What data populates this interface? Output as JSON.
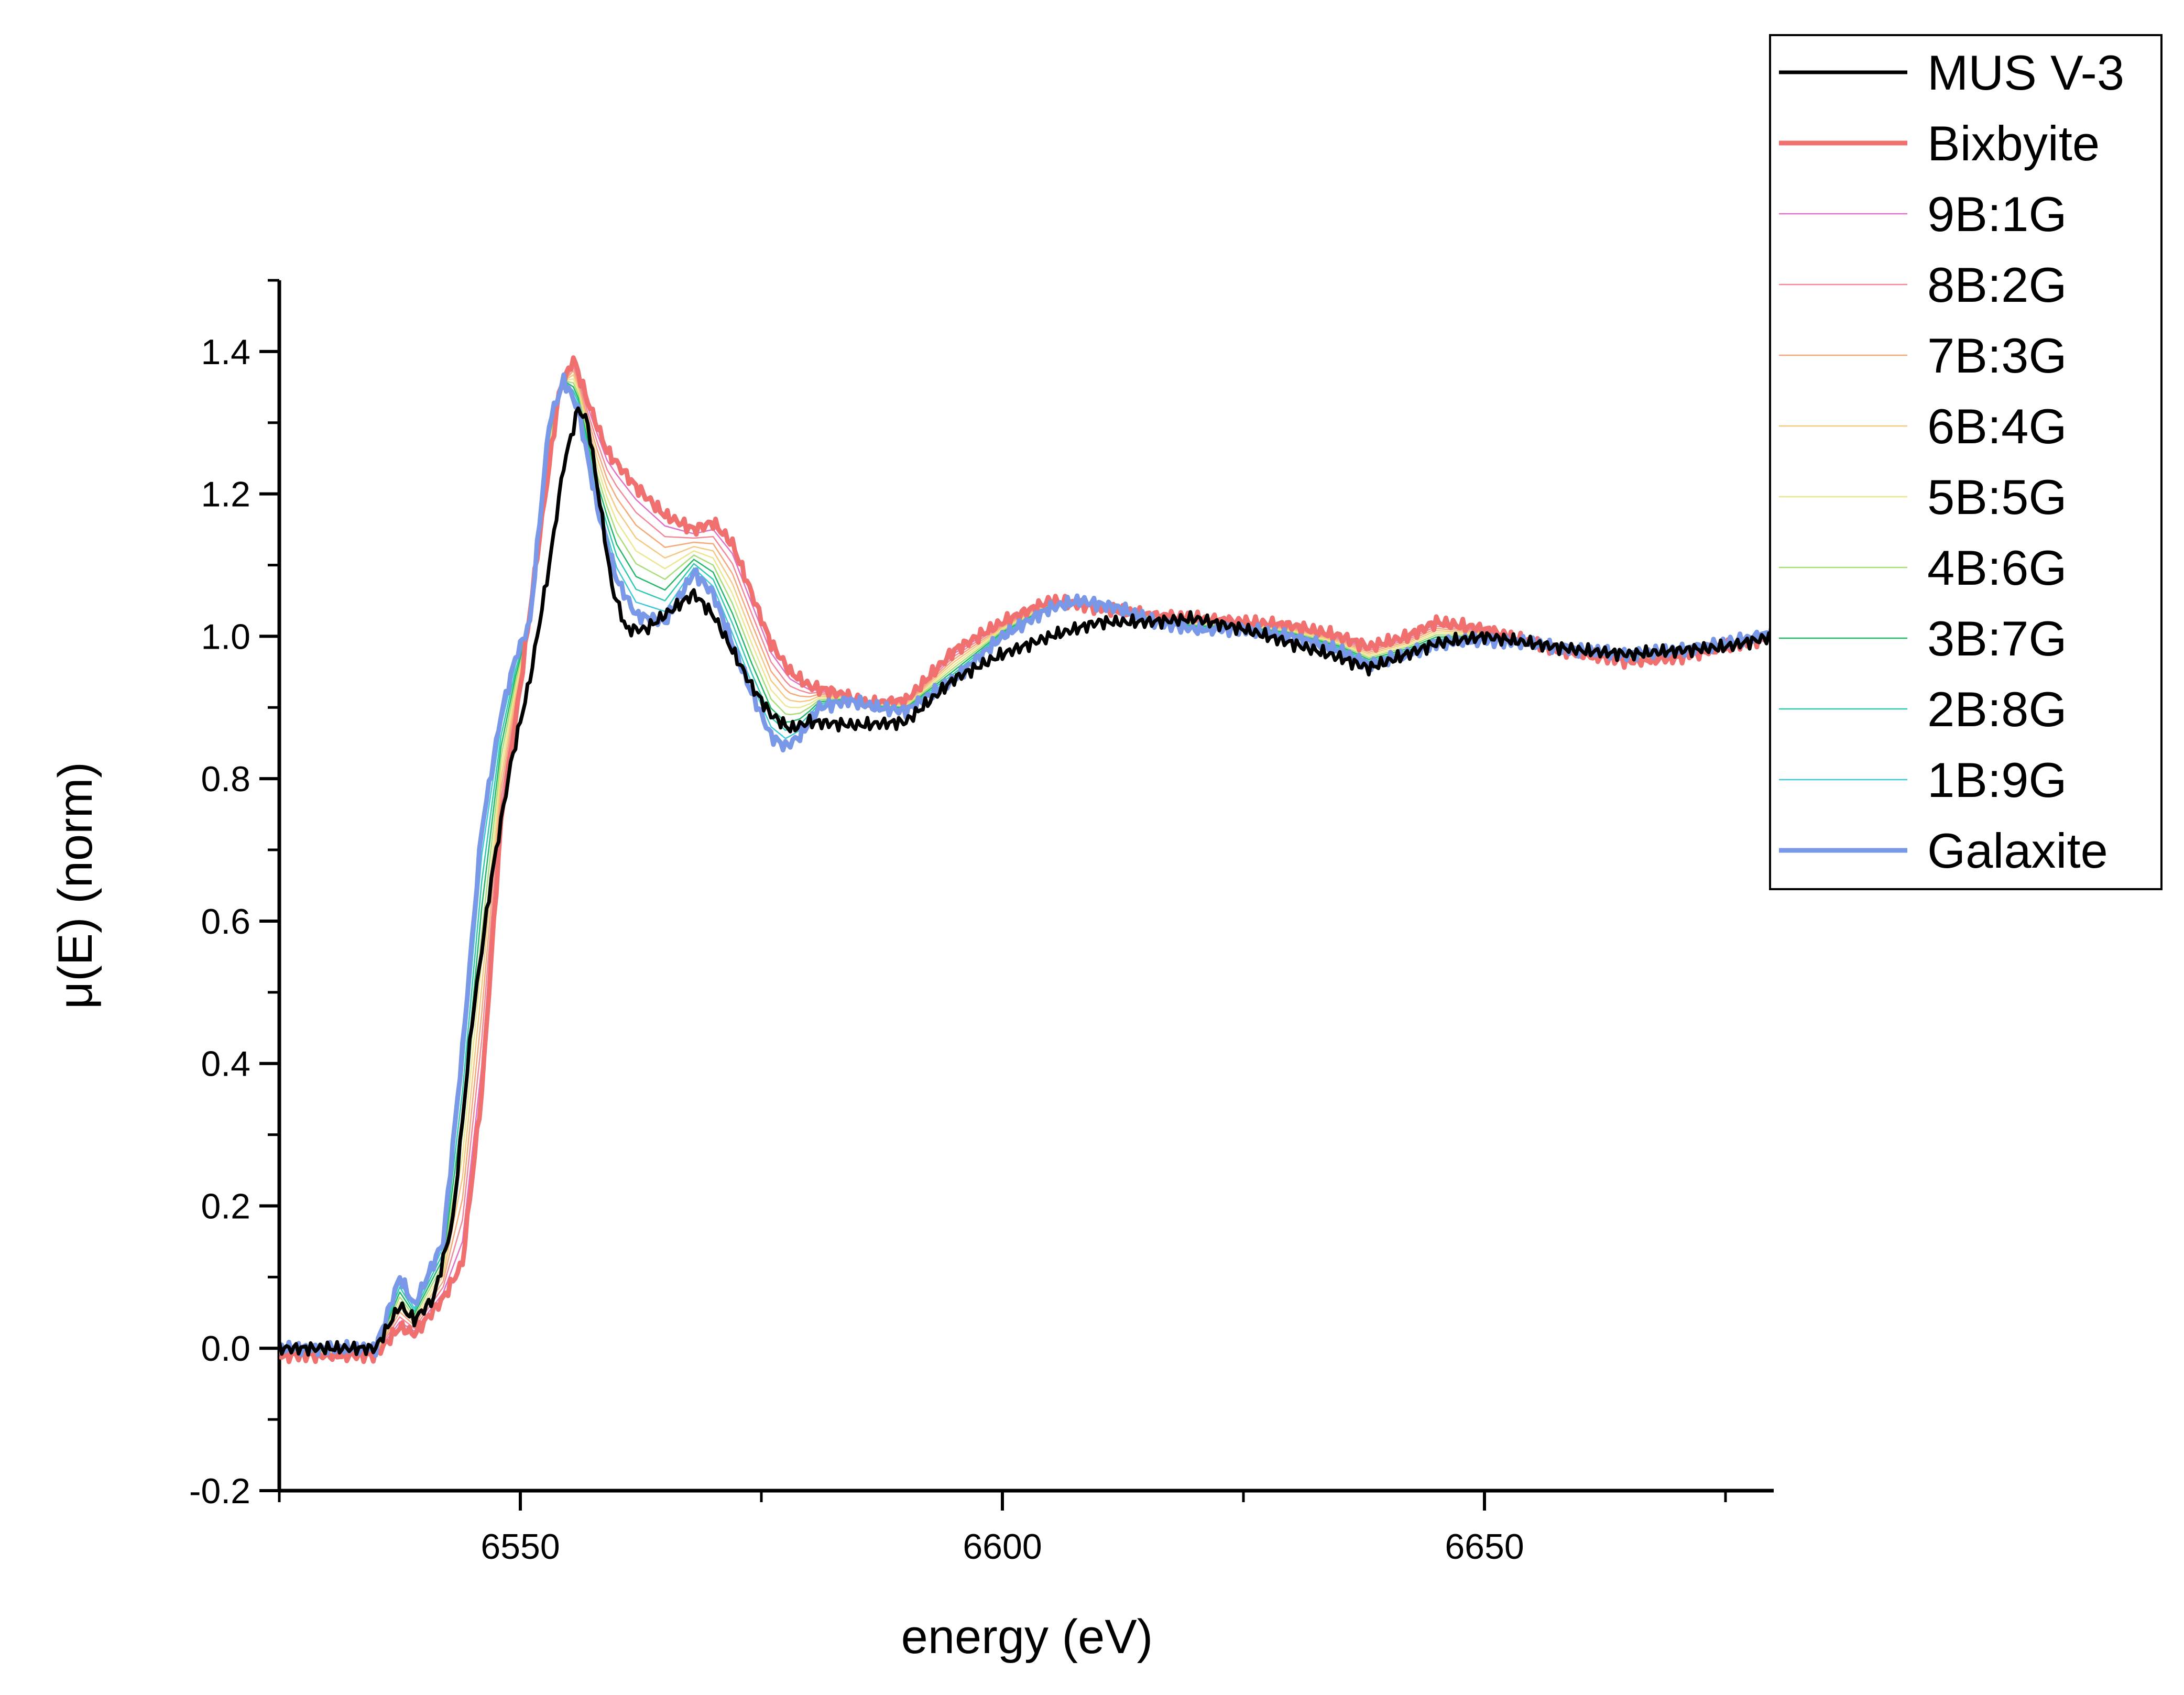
{
  "chart_data": {
    "type": "line",
    "title": "",
    "xlabel": "energy (eV)",
    "ylabel": "μ(E) (norm)",
    "xlim": [
      6525,
      6680
    ],
    "ylim": [
      -0.2,
      1.5
    ],
    "x_ticks": [
      6550,
      6600,
      6650
    ],
    "x_tick_labels": [
      "6550",
      "6600",
      "6650"
    ],
    "y_ticks": [
      -0.2,
      0.0,
      0.2,
      0.4,
      0.6,
      0.8,
      1.0,
      1.2,
      1.4
    ],
    "y_tick_labels": [
      "-0.2",
      "0.0",
      "0.2",
      "0.4",
      "0.6",
      "0.8",
      "1.0",
      "1.2",
      "1.4"
    ],
    "grid": false,
    "legend_position": "top-right",
    "reference_spectra": {
      "bixbyite": {
        "x": [
          6525,
          6530,
          6535,
          6537.5,
          6539,
          6542,
          6544,
          6546,
          6548,
          6550,
          6552,
          6554,
          6555.5,
          6557,
          6559,
          6562,
          6565,
          6568,
          6570,
          6572,
          6574,
          6576,
          6578,
          6580,
          6583,
          6586,
          6590,
          6595,
          6600,
          6605,
          6610,
          6615,
          6620,
          6625,
          6630,
          6635,
          6638,
          6642,
          6645,
          6650,
          6655,
          6660,
          6665,
          6670,
          6675,
          6680
        ],
        "y": [
          -0.01,
          -0.01,
          -0.01,
          0.03,
          0.02,
          0.07,
          0.12,
          0.36,
          0.74,
          0.93,
          1.14,
          1.34,
          1.39,
          1.33,
          1.26,
          1.21,
          1.17,
          1.15,
          1.16,
          1.13,
          1.06,
          0.99,
          0.95,
          0.93,
          0.92,
          0.905,
          0.91,
          0.98,
          1.02,
          1.05,
          1.04,
          1.03,
          1.025,
          1.02,
          1.015,
          1.0,
          0.985,
          1.0,
          1.02,
          1.01,
          0.99,
          0.975,
          0.965,
          0.97,
          0.985,
          1.0
        ]
      },
      "galaxite": {
        "x": [
          6525,
          6530,
          6535,
          6537.5,
          6539,
          6542,
          6544,
          6546,
          6548,
          6549.5,
          6551,
          6553,
          6554.5,
          6556,
          6558,
          6560,
          6562,
          6565,
          6568,
          6570,
          6572,
          6574,
          6576,
          6577.5,
          6579,
          6581,
          6584,
          6587,
          6590,
          6595,
          6600,
          6605,
          6608,
          6612,
          6616,
          6620,
          6625,
          6630,
          6635,
          6638,
          6642,
          6645,
          6650,
          6655,
          6660,
          6665,
          6670,
          6675,
          6680
        ],
        "y": [
          0.0,
          0.0,
          0.0,
          0.1,
          0.06,
          0.15,
          0.42,
          0.73,
          0.89,
          0.97,
          1.02,
          1.3,
          1.36,
          1.32,
          1.18,
          1.08,
          1.03,
          1.02,
          1.09,
          1.06,
          0.99,
          0.92,
          0.86,
          0.845,
          0.86,
          0.9,
          0.91,
          0.9,
          0.895,
          0.94,
          1.0,
          1.04,
          1.05,
          1.04,
          1.02,
          1.01,
          1.01,
          1.0,
          0.98,
          0.96,
          0.975,
          0.99,
          0.995,
          0.99,
          0.98,
          0.975,
          0.98,
          0.99,
          1.005
        ]
      },
      "mus_v3": {
        "x": [
          6525,
          6530,
          6535,
          6537.5,
          6539,
          6541,
          6543,
          6545,
          6547,
          6549,
          6551,
          6553,
          6554.5,
          6556,
          6557,
          6558,
          6559.5,
          6561,
          6563,
          6566,
          6568,
          6570,
          6572,
          6574,
          6576,
          6578,
          6580,
          6585,
          6590,
          6595,
          6600,
          6605,
          6610,
          6615,
          6620,
          6625,
          6630,
          6635,
          6638,
          6642,
          6645,
          6650,
          6655,
          6660,
          6665,
          6670,
          6675,
          6680
        ],
        "y": [
          0.0,
          0.0,
          0.0,
          0.06,
          0.04,
          0.07,
          0.18,
          0.46,
          0.66,
          0.82,
          0.94,
          1.1,
          1.24,
          1.32,
          1.3,
          1.21,
          1.07,
          1.01,
          1.01,
          1.04,
          1.06,
          1.03,
          0.98,
          0.93,
          0.89,
          0.87,
          0.88,
          0.875,
          0.88,
          0.94,
          0.975,
          1.0,
          1.02,
          1.02,
          1.025,
          1.01,
          0.99,
          0.97,
          0.955,
          0.975,
          0.99,
          1.0,
          0.99,
          0.98,
          0.975,
          0.98,
          0.985,
          1.0
        ]
      }
    },
    "series": [
      {
        "name": "MUS V-3",
        "color": "#000000",
        "weight": "medium",
        "source": "mus_v3"
      },
      {
        "name": "Bixbyite",
        "color": "#f07070",
        "weight": "bold",
        "mix_b": 1.0
      },
      {
        "name": "9B:1G",
        "color": "#e070c8",
        "weight": "thin",
        "mix_b": 0.9
      },
      {
        "name": "8B:2G",
        "color": "#f08898",
        "weight": "thin",
        "mix_b": 0.8
      },
      {
        "name": "7B:3G",
        "color": "#f4a878",
        "weight": "thin",
        "mix_b": 0.7
      },
      {
        "name": "6B:4G",
        "color": "#f4c880",
        "weight": "thin",
        "mix_b": 0.6
      },
      {
        "name": "5B:5G",
        "color": "#ece690",
        "weight": "thin",
        "mix_b": 0.5
      },
      {
        "name": "4B:6G",
        "color": "#a8dc78",
        "weight": "thin",
        "mix_b": 0.4
      },
      {
        "name": "3B:7G",
        "color": "#22b868",
        "weight": "thin",
        "mix_b": 0.3
      },
      {
        "name": "2B:8G",
        "color": "#30c8b0",
        "weight": "thin",
        "mix_b": 0.2
      },
      {
        "name": "1B:9G",
        "color": "#40c8d8",
        "weight": "thin",
        "mix_b": 0.1
      },
      {
        "name": "Galaxite",
        "color": "#7a98e8",
        "weight": "bold",
        "mix_b": 0.0
      }
    ]
  }
}
